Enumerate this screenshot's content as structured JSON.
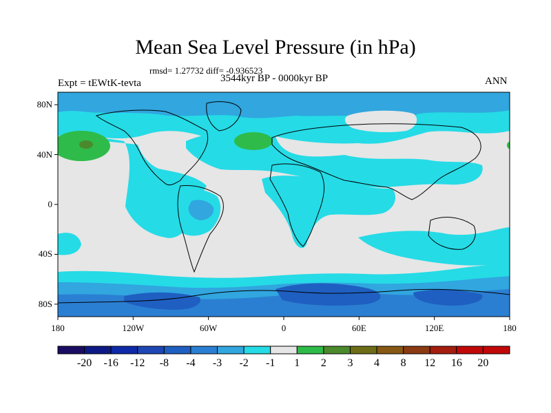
{
  "title": "Mean Sea Level Pressure (in hPa)",
  "stats_line": "rmsd= 1.27732  diff= -0.936523",
  "period": "3544kyr BP - 0000kyr BP",
  "experiment": "Expt = tEWtK-tevta",
  "season": "ANN",
  "lat_labels": [
    "80N",
    "40N",
    "0",
    "40S",
    "80S"
  ],
  "lon_labels": [
    "180",
    "120W",
    "60W",
    "0",
    "60E",
    "120E",
    "180"
  ],
  "colorbar": {
    "labels": [
      "-20",
      "-16",
      "-12",
      "-8",
      "-4",
      "-3",
      "-2",
      "-1",
      "1",
      "2",
      "3",
      "4",
      "8",
      "12",
      "16",
      "20"
    ],
    "colors": [
      "#1b0c63",
      "#0d1a85",
      "#0e2aa8",
      "#1e46b4",
      "#1f5fc1",
      "#2b7fd2",
      "#31a6df",
      "#25dbe6",
      "#e6e6e6",
      "#2fbb49",
      "#4b8a2c",
      "#6d6d17",
      "#875914",
      "#8a3b12",
      "#a51d0e",
      "#c10808"
    ]
  },
  "map_colors": {
    "neutral": "#e6e6e6",
    "light_negative": "#25dbe6",
    "medium_negative": "#31a6df",
    "strong_negative": "#2b7fd2",
    "stronger_negative": "#1f5fc1",
    "positive": "#2fbb49",
    "positive_core": "#4b8a2c"
  }
}
